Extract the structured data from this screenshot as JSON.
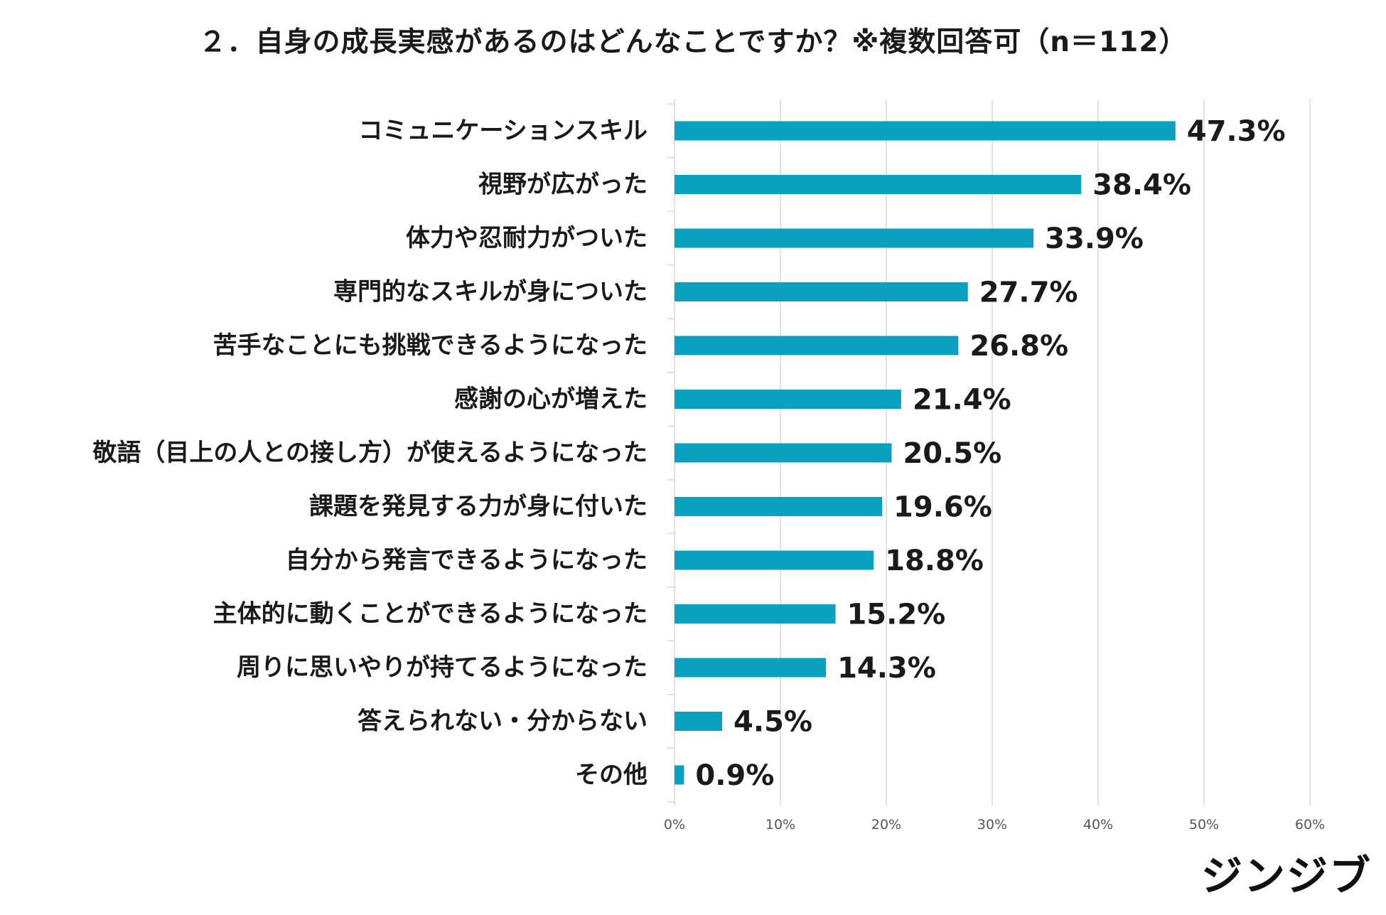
{
  "chart_data": {
    "type": "bar",
    "orientation": "horizontal",
    "title": "２．自身の成長実感があるのはどんなことですか？※複数回答可（n＝112）",
    "categories": [
      "コミュニケーションスキル",
      "視野が広がった",
      "体力や忍耐力がついた",
      "専門的なスキルが身についた",
      "苦手なことにも挑戦できるようになった",
      "感謝の心が増えた",
      "敬語（目上の人との接し方）が使えるようになった",
      "課題を発見する力が身に付いた",
      "自分から発言できるようになった",
      "主体的に動くことができるようになった",
      "周りに思いやりが持てるようになった",
      "答えられない・分からない",
      "その他"
    ],
    "values": [
      47.3,
      38.4,
      33.9,
      27.7,
      26.8,
      21.4,
      20.5,
      19.6,
      18.8,
      15.2,
      14.3,
      4.5,
      0.9
    ],
    "value_labels": [
      "47.3%",
      "38.4%",
      "33.9%",
      "27.7%",
      "26.8%",
      "21.4%",
      "20.5%",
      "19.6%",
      "18.8%",
      "15.2%",
      "14.3%",
      "4.5%",
      "0.9%"
    ],
    "xlim": [
      0,
      60
    ],
    "xticks": [
      0,
      10,
      20,
      30,
      40,
      50,
      60
    ],
    "xtick_labels": [
      "0%",
      "10%",
      "20%",
      "30%",
      "40%",
      "50%",
      "60%"
    ],
    "grid": true,
    "bar_color": "#0aa0bf",
    "grid_color": "#d9d9d9"
  },
  "logo": {
    "text": "ジンジブ"
  }
}
